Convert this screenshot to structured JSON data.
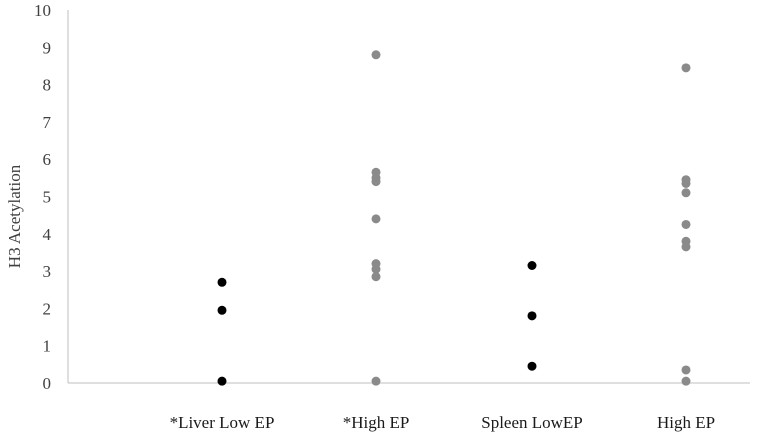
{
  "chart_data": {
    "type": "scatter",
    "title": "",
    "xlabel": "",
    "ylabel": "H3 Acetylation",
    "ylim": [
      0,
      10
    ],
    "yticks": [
      0,
      1,
      2,
      3,
      4,
      5,
      6,
      7,
      8,
      9,
      10
    ],
    "grid": false,
    "categories": [
      "*Liver Low EP",
      "*High EP",
      "Spleen LowEP",
      "High EP"
    ],
    "series": [
      {
        "category": "*Liver Low EP",
        "color": "#000000",
        "values": [
          2.7,
          1.95,
          0.05
        ]
      },
      {
        "category": "*High EP",
        "color": "#8a8a8a",
        "values": [
          8.8,
          5.65,
          5.5,
          5.4,
          4.4,
          3.2,
          3.05,
          2.85,
          0.05
        ]
      },
      {
        "category": "Spleen LowEP",
        "color": "#000000",
        "values": [
          3.15,
          1.8,
          0.45
        ]
      },
      {
        "category": "High EP",
        "color": "#8a8a8a",
        "values": [
          8.45,
          5.45,
          5.35,
          5.1,
          4.25,
          3.8,
          3.65,
          0.35,
          0.05
        ]
      }
    ]
  }
}
